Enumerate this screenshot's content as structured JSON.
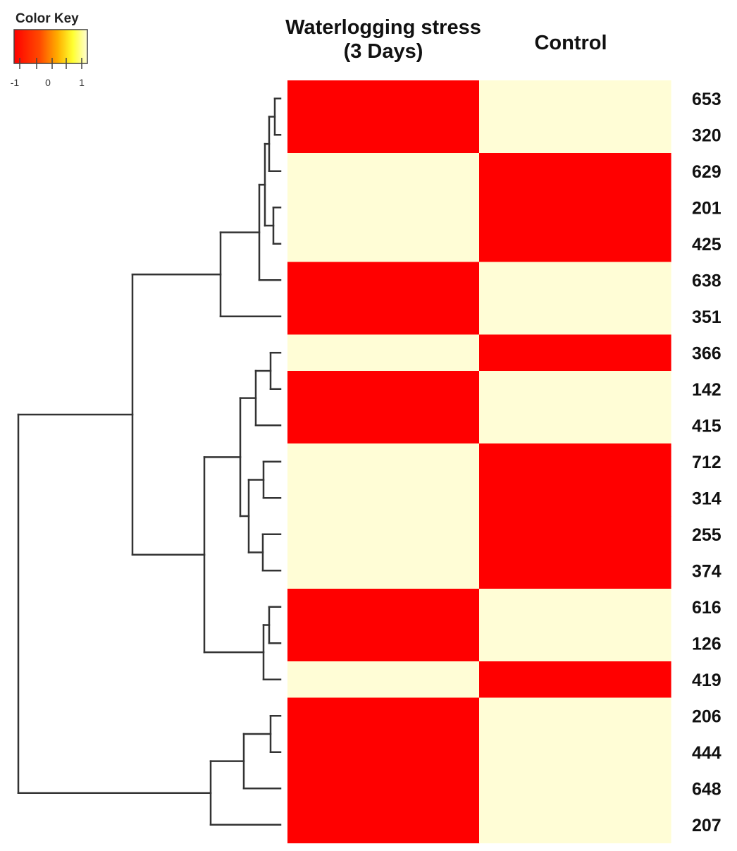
{
  "color_key": {
    "title": "Color Key",
    "ticks": [
      "-1",
      "0",
      "1"
    ],
    "low_color": "#ff0000",
    "high_color": "#fffdd6"
  },
  "chart_data": {
    "type": "heatmap",
    "columns": [
      "Waterlogging stress (3 Days)",
      "Control"
    ],
    "column_label_lines": [
      [
        "Waterlogging stress",
        "(3 Days)"
      ],
      [
        "Control"
      ]
    ],
    "rows": [
      "653",
      "320",
      "629",
      "201",
      "425",
      "638",
      "351",
      "366",
      "142",
      "415",
      "712",
      "314",
      "255",
      "374",
      "616",
      "126",
      "419",
      "206",
      "444",
      "648",
      "207"
    ],
    "values": [
      [
        -1,
        1
      ],
      [
        -1,
        1
      ],
      [
        1,
        -1
      ],
      [
        1,
        -1
      ],
      [
        1,
        -1
      ],
      [
        -1,
        1
      ],
      [
        -1,
        1
      ],
      [
        1,
        -1
      ],
      [
        -1,
        1
      ],
      [
        -1,
        1
      ],
      [
        1,
        -1
      ],
      [
        1,
        -1
      ],
      [
        1,
        -1
      ],
      [
        1,
        -1
      ],
      [
        -1,
        1
      ],
      [
        -1,
        1
      ],
      [
        1,
        -1
      ],
      [
        -1,
        1
      ],
      [
        -1,
        1
      ],
      [
        -1,
        1
      ],
      [
        -1,
        1
      ]
    ],
    "value_range": [
      -1,
      1
    ],
    "dendrogram": "row clustering tree on left"
  }
}
